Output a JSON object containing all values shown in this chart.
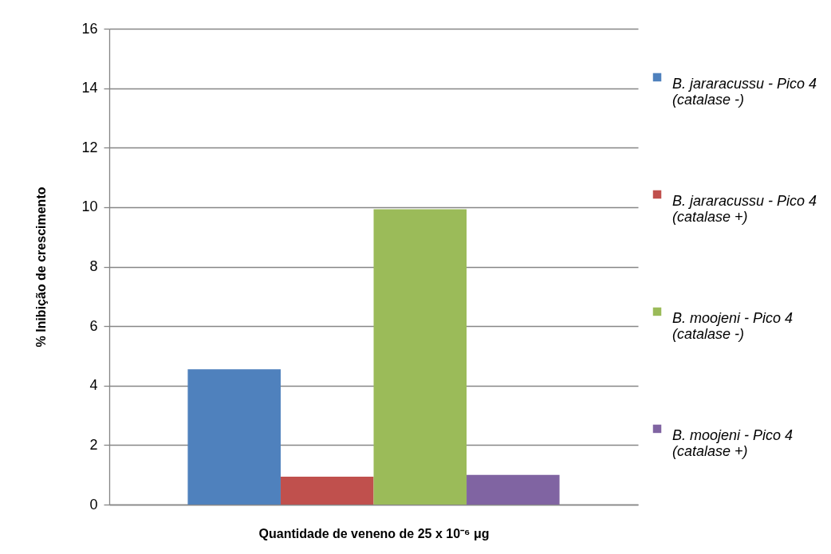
{
  "chart_data": {
    "type": "bar",
    "xlabel": "Quantidade de veneno de 25 x 10⁻⁶ μg",
    "ylabel": "% Inibição de crescimento",
    "categories": [
      null
    ],
    "series": [
      {
        "name": "B. jararacussu - Pico 4 (catalase -)",
        "color": "#4f81bd",
        "values": [
          4.55
        ]
      },
      {
        "name": "B. jararacussu - Pico 4 (catalase +)",
        "color": "#c0504d",
        "values": [
          0.94
        ]
      },
      {
        "name": "B. moojeni - Pico 4 (catalase -)",
        "color": "#9bbb59",
        "values": [
          9.93
        ]
      },
      {
        "name": "B. moojeni - Pico 4 (catalase +)",
        "color": "#8064a2",
        "values": [
          1.0
        ]
      }
    ],
    "ylim": [
      0,
      16
    ],
    "yticks": [
      0,
      2,
      4,
      6,
      8,
      10,
      12,
      14,
      16
    ],
    "grid": "y",
    "legend": "right"
  }
}
